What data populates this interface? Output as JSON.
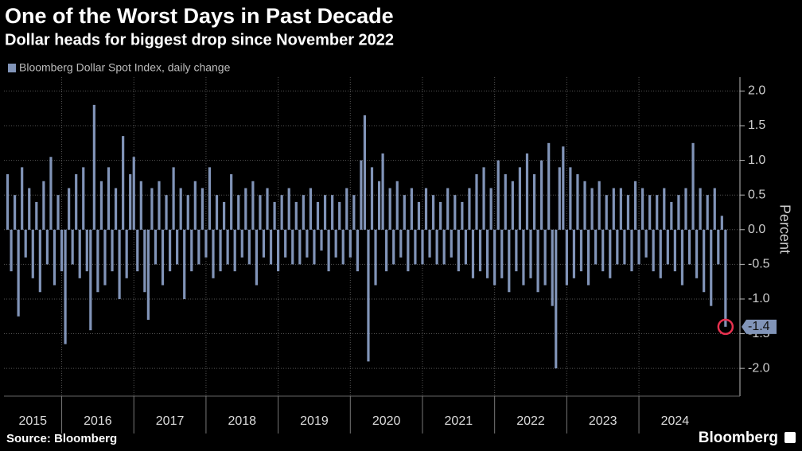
{
  "chart_data": {
    "type": "bar",
    "title": "One of the Worst Days in Past Decade",
    "subtitle": "Dollar heads for biggest drop since November 2022",
    "series": [
      {
        "name": "Bloomberg Dollar Spot Index, daily change",
        "color": "#8194b8",
        "values": [
          0.8,
          -0.6,
          0.5,
          -1.25,
          0.9,
          -0.4,
          0.6,
          -0.7,
          0.4,
          -0.9,
          0.7,
          -0.5,
          1.05,
          -0.8,
          0.5,
          -0.6,
          -1.65,
          0.6,
          -0.5,
          0.8,
          -0.7,
          0.9,
          -0.6,
          -1.45,
          1.8,
          -0.9,
          0.7,
          -0.8,
          0.9,
          -0.6,
          0.6,
          -1.0,
          1.35,
          -0.7,
          0.8,
          1.05,
          -0.6,
          0.7,
          -0.9,
          -1.3,
          0.6,
          -0.5,
          0.7,
          -0.8,
          0.5,
          -0.6,
          0.9,
          -0.5,
          0.6,
          -1.0,
          0.5,
          -0.6,
          0.7,
          -0.5,
          0.6,
          -0.4,
          0.9,
          -0.7,
          0.5,
          -0.6,
          0.4,
          -0.5,
          0.8,
          -0.6,
          0.5,
          -0.4,
          0.6,
          -0.5,
          0.7,
          -0.8,
          0.5,
          -0.4,
          0.6,
          -0.5,
          0.4,
          -0.6,
          0.5,
          -0.4,
          0.6,
          -0.5,
          0.4,
          -0.5,
          0.5,
          -0.4,
          0.6,
          -0.5,
          0.4,
          -0.3,
          0.5,
          -0.6,
          0.5,
          -0.4,
          0.4,
          -0.5,
          0.6,
          -0.4,
          0.5,
          -0.6,
          1.0,
          1.65,
          -1.9,
          0.9,
          -0.8,
          0.7,
          1.1,
          -0.6,
          0.6,
          -0.5,
          0.7,
          -0.4,
          0.5,
          -0.6,
          0.6,
          -0.5,
          0.4,
          -0.5,
          0.6,
          -0.4,
          0.5,
          -0.5,
          0.4,
          -0.5,
          0.6,
          -0.4,
          0.5,
          -0.6,
          0.4,
          -0.5,
          0.6,
          -0.7,
          0.8,
          -0.6,
          0.9,
          -0.7,
          0.6,
          -0.8,
          1.0,
          -0.7,
          0.8,
          -0.9,
          0.7,
          -0.6,
          0.9,
          -0.8,
          1.1,
          -0.7,
          0.8,
          -0.9,
          1.0,
          -0.8,
          1.25,
          -1.1,
          -2.0,
          0.9,
          1.2,
          -0.8,
          0.9,
          -0.7,
          0.8,
          -0.6,
          0.7,
          -0.8,
          0.6,
          -0.5,
          0.7,
          -0.6,
          0.5,
          -0.7,
          0.6,
          -0.5,
          0.6,
          -0.5,
          0.5,
          -0.6,
          0.7,
          -0.5,
          0.6,
          -0.4,
          0.5,
          -0.6,
          0.5,
          -0.7,
          0.6,
          -0.5,
          0.4,
          -0.6,
          0.5,
          -0.8,
          0.6,
          -0.5,
          1.25,
          -0.7,
          0.6,
          -0.9,
          0.5,
          -1.1,
          0.6,
          -0.5,
          0.2,
          -1.4
        ]
      }
    ],
    "x": [
      2015.25,
      2015.3,
      2015.35,
      2015.4,
      2015.45,
      2015.5,
      2015.55,
      2015.6,
      2015.65,
      2015.7,
      2015.75,
      2015.8,
      2015.85,
      2015.9,
      2015.95,
      2016,
      2016.05,
      2016.1,
      2016.15,
      2016.2,
      2016.25,
      2016.3,
      2016.35,
      2016.4,
      2016.45,
      2016.5,
      2016.55,
      2016.6,
      2016.65,
      2016.7,
      2016.75,
      2016.8,
      2016.85,
      2016.9,
      2016.95,
      2017,
      2017.05,
      2017.1,
      2017.15,
      2017.2,
      2017.25,
      2017.3,
      2017.35,
      2017.4,
      2017.45,
      2017.5,
      2017.55,
      2017.6,
      2017.65,
      2017.7,
      2017.75,
      2017.8,
      2017.85,
      2017.9,
      2017.95,
      2018,
      2018.05,
      2018.1,
      2018.15,
      2018.2,
      2018.25,
      2018.3,
      2018.35,
      2018.4,
      2018.45,
      2018.5,
      2018.55,
      2018.6,
      2018.65,
      2018.7,
      2018.75,
      2018.8,
      2018.85,
      2018.9,
      2018.95,
      2019,
      2019.05,
      2019.1,
      2019.15,
      2019.2,
      2019.25,
      2019.3,
      2019.35,
      2019.4,
      2019.45,
      2019.5,
      2019.55,
      2019.6,
      2019.65,
      2019.7,
      2019.75,
      2019.8,
      2019.85,
      2019.9,
      2019.95,
      2020,
      2020.05,
      2020.1,
      2020.15,
      2020.2,
      2020.25,
      2020.3,
      2020.35,
      2020.4,
      2020.45,
      2020.5,
      2020.55,
      2020.6,
      2020.65,
      2020.7,
      2020.75,
      2020.8,
      2020.85,
      2020.9,
      2020.95,
      2021,
      2021.05,
      2021.1,
      2021.15,
      2021.2,
      2021.25,
      2021.3,
      2021.35,
      2021.4,
      2021.45,
      2021.5,
      2021.55,
      2021.6,
      2021.65,
      2021.7,
      2021.75,
      2021.8,
      2021.85,
      2021.9,
      2021.95,
      2022,
      2022.05,
      2022.1,
      2022.15,
      2022.2,
      2022.25,
      2022.3,
      2022.35,
      2022.4,
      2022.45,
      2022.5,
      2022.55,
      2022.6,
      2022.65,
      2022.7,
      2022.75,
      2022.8,
      2022.85,
      2022.9,
      2022.95,
      2023,
      2023.05,
      2023.1,
      2023.15,
      2023.2,
      2023.25,
      2023.3,
      2023.35,
      2023.4,
      2023.45,
      2023.5,
      2023.55,
      2023.6,
      2023.65,
      2023.7,
      2023.75,
      2023.8,
      2023.85,
      2023.9,
      2023.95,
      2024,
      2024.05,
      2024.1,
      2024.15,
      2024.2,
      2024.25,
      2024.3,
      2024.35,
      2024.4,
      2024.45,
      2024.5,
      2024.55,
      2024.6,
      2024.65,
      2024.7,
      2024.75,
      2024.8,
      2024.85,
      2024.9,
      2024.95,
      2025,
      2025.05,
      2025.1,
      2025.15,
      2025.2
    ],
    "xlim": [
      2015.2,
      2025.4
    ],
    "xticks": [
      2015,
      2016,
      2017,
      2018,
      2019,
      2020,
      2021,
      2022,
      2023,
      2024
    ],
    "ylabel": "Percent",
    "ylim": [
      -2.4,
      2.2
    ],
    "yticks": [
      {
        "value": 2,
        "label": "2.0"
      },
      1.5,
      {
        "value": 1,
        "label": "1.0"
      },
      0.5,
      {
        "value": 0,
        "label": "0.0"
      },
      -0.5,
      {
        "value": -1,
        "label": "-1.0"
      },
      -1.5,
      {
        "value": -2,
        "label": "-2.0"
      }
    ],
    "grid": true,
    "annotation": {
      "x": 2025.2,
      "y": -1.4,
      "label": "-1.4",
      "color": "#e8314f"
    },
    "source": "Source: Bloomberg",
    "branding": "Bloomberg"
  }
}
